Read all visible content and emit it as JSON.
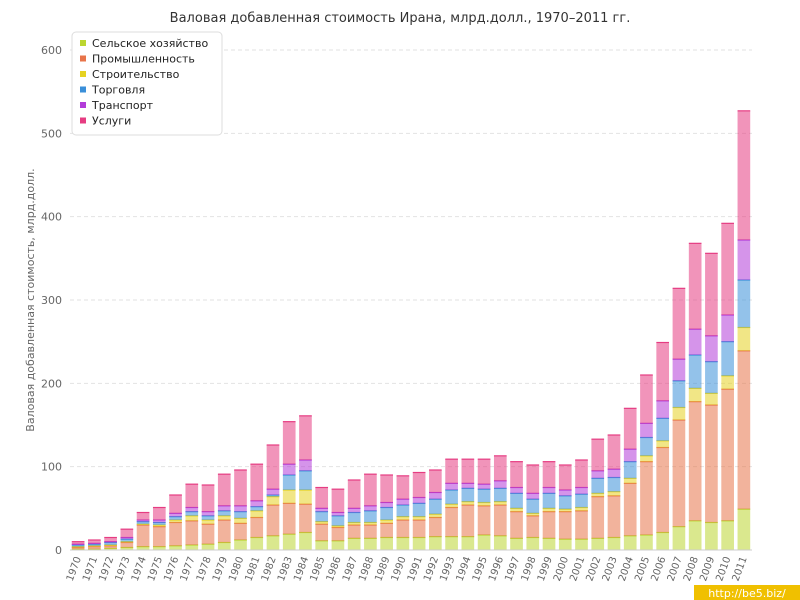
{
  "chart_data": {
    "type": "bar",
    "stacked": true,
    "title": "Валовая добавленная стоимость Ирана, млрд.долл., 1970–2011 гг.",
    "ylabel": "Валовая добавленная стоимость, млрд.долл.",
    "xlabel": "",
    "ylim": [
      0,
      600
    ],
    "yticks": [
      0,
      100,
      200,
      300,
      400,
      500,
      600
    ],
    "grid": true,
    "legend_position": "top-left",
    "categories": [
      "1970",
      "1971",
      "1972",
      "1973",
      "1974",
      "1975",
      "1976",
      "1977",
      "1978",
      "1979",
      "1980",
      "1981",
      "1982",
      "1983",
      "1984",
      "1985",
      "1986",
      "1987",
      "1988",
      "1989",
      "1990",
      "1991",
      "1992",
      "1993",
      "1994",
      "1995",
      "1996",
      "1997",
      "1998",
      "1999",
      "2000",
      "2001",
      "2002",
      "2003",
      "2004",
      "2005",
      "2006",
      "2007",
      "2008",
      "2009",
      "2010",
      "2011"
    ],
    "series": [
      {
        "name": "Сельское хозяйство",
        "color": "#bcd631",
        "values": [
          1,
          1,
          2,
          3,
          4,
          4,
          5,
          6,
          7,
          9,
          12,
          15,
          17,
          19,
          21,
          11,
          11,
          14,
          14,
          15,
          15,
          15,
          16,
          16,
          16,
          18,
          17,
          14,
          15,
          14,
          13,
          13,
          14,
          15,
          17,
          18,
          21,
          28,
          35,
          33,
          35,
          49
        ]
      },
      {
        "name": "Промышленность",
        "color": "#e8744a",
        "values": [
          2,
          3,
          3,
          6,
          26,
          24,
          28,
          29,
          24,
          27,
          20,
          24,
          37,
          37,
          34,
          20,
          16,
          16,
          16,
          17,
          21,
          21,
          23,
          35,
          38,
          35,
          37,
          32,
          26,
          32,
          33,
          34,
          50,
          50,
          63,
          88,
          102,
          128,
          143,
          141,
          158,
          190
        ]
      },
      {
        "name": "Строительство",
        "color": "#e6d222",
        "values": [
          1,
          1,
          1,
          1,
          1,
          2,
          3,
          6,
          5,
          5,
          6,
          8,
          10,
          16,
          17,
          3,
          2,
          3,
          3,
          4,
          4,
          4,
          4,
          4,
          4,
          4,
          4,
          4,
          3,
          4,
          3,
          4,
          4,
          5,
          6,
          7,
          8,
          15,
          16,
          14,
          16,
          28
        ]
      },
      {
        "name": "Торговля",
        "color": "#3a8fd9",
        "values": [
          2,
          2,
          3,
          3,
          3,
          3,
          4,
          5,
          5,
          6,
          8,
          5,
          2,
          18,
          23,
          12,
          12,
          12,
          14,
          15,
          14,
          16,
          18,
          17,
          16,
          16,
          16,
          18,
          17,
          18,
          16,
          16,
          18,
          17,
          20,
          22,
          27,
          32,
          40,
          38,
          41,
          57
        ]
      },
      {
        "name": "Транспорт",
        "color": "#b23cd9",
        "values": [
          1,
          1,
          1,
          2,
          2,
          3,
          4,
          5,
          5,
          6,
          7,
          7,
          7,
          13,
          13,
          4,
          4,
          5,
          6,
          6,
          7,
          7,
          8,
          8,
          6,
          6,
          9,
          7,
          7,
          7,
          7,
          8,
          9,
          10,
          15,
          17,
          21,
          26,
          31,
          31,
          32,
          48
        ]
      },
      {
        "name": "Услуги",
        "color": "#e63c82",
        "values": [
          3,
          4,
          5,
          10,
          9,
          15,
          22,
          28,
          32,
          38,
          43,
          44,
          53,
          51,
          53,
          25,
          28,
          34,
          38,
          33,
          28,
          30,
          27,
          29,
          29,
          30,
          30,
          31,
          34,
          31,
          30,
          33,
          38,
          41,
          49,
          58,
          70,
          85,
          103,
          99,
          110,
          155
        ]
      }
    ]
  },
  "watermark": "http://be5.biz/"
}
